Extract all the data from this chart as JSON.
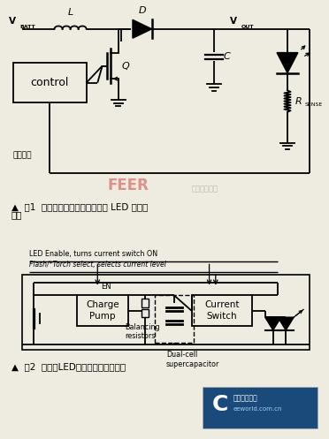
{
  "bg_color": "#eeebe0",
  "fig_width": 3.72,
  "fig_height": 4.97,
  "dpi": 100,
  "caption1_line1": "▲  图1  电流控制的升压转换器做为 LED 闪光驱",
  "caption1_line2": "动器",
  "caption2": "▲  图2  大功率LED超级电容器方案框图",
  "label_vbatt": "V",
  "label_batt_sub": "BATT",
  "label_l": "L",
  "label_d": "D",
  "label_vout": "V",
  "label_out_sub": "OUT",
  "label_c": "C",
  "label_q": "Q",
  "label_rsense_r": "R",
  "label_rsense_sub": "SENSE",
  "label_control": "control",
  "label_feedback": "电流反馈",
  "label_en": "EN",
  "label_led_enable": "LED Enable, turns current switch ON",
  "label_flash": "Flash/*Torch select, selects current level",
  "label_charge_pump": "Charge\nPump",
  "label_current_switch": "Current\nSwitch",
  "label_balancing": "Balancing\nresistors",
  "label_dual_cell": "Dual-cell\nsupercapacitor",
  "logo_c": "C",
  "logo_line1": "电子工程世界",
  "logo_line2": "eeworld.com.cn",
  "watermark_feer": "FEER",
  "watermark_cn": "电子产品世界"
}
